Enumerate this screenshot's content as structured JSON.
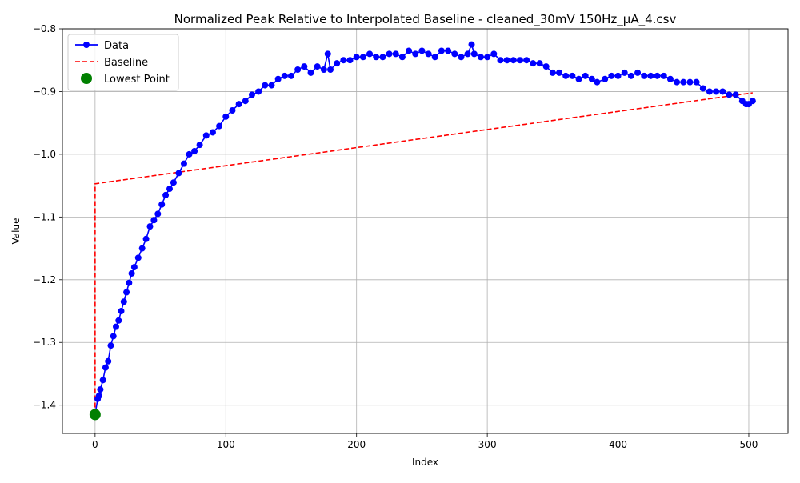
{
  "chart_data": {
    "type": "scatter",
    "title": "Normalized Peak Relative to Interpolated Baseline - cleaned_30mV 150Hz_µA_4.csv",
    "xlabel": "Index",
    "ylabel": "Value",
    "xlim": [
      -25,
      530
    ],
    "ylim": [
      -1.445,
      -0.8
    ],
    "x_ticks": [
      0,
      100,
      200,
      300,
      400,
      500
    ],
    "x_tick_labels": [
      "0",
      "100",
      "200",
      "300",
      "400",
      "500"
    ],
    "y_ticks": [
      -1.4,
      -1.3,
      -1.2,
      -1.1,
      -1.0,
      -0.9,
      -0.8
    ],
    "y_tick_labels": [
      "−1.4",
      "−1.3",
      "−1.2",
      "−1.1",
      "−1.0",
      "−0.9",
      "−0.8"
    ],
    "grid": true,
    "legend_position": "top-left",
    "legend": [
      "Data",
      "Baseline",
      "Lowest Point"
    ],
    "colors": {
      "data": "#0000ff",
      "baseline": "#ff0000",
      "lowest": "#008000",
      "grid": "#b0b0b0"
    },
    "series": [
      {
        "name": "Data",
        "style": "line-with-markers",
        "x": [
          0,
          2,
          3,
          4,
          6,
          8,
          10,
          12,
          14,
          16,
          18,
          20,
          22,
          24,
          26,
          28,
          30,
          33,
          36,
          39,
          42,
          45,
          48,
          51,
          54,
          57,
          60,
          64,
          68,
          72,
          76,
          80,
          85,
          90,
          95,
          100,
          105,
          110,
          115,
          120,
          125,
          130,
          135,
          140,
          145,
          150,
          155,
          160,
          165,
          170,
          175,
          178,
          180,
          185,
          190,
          195,
          200,
          205,
          210,
          215,
          220,
          225,
          230,
          235,
          240,
          245,
          250,
          255,
          260,
          265,
          270,
          275,
          280,
          285,
          288,
          290,
          295,
          300,
          305,
          310,
          315,
          320,
          325,
          330,
          335,
          340,
          345,
          350,
          355,
          360,
          365,
          370,
          375,
          380,
          384,
          390,
          395,
          400,
          405,
          410,
          415,
          420,
          425,
          430,
          435,
          440,
          445,
          450,
          455,
          460,
          465,
          470,
          475,
          480,
          485,
          490,
          495,
          498,
          500,
          503
        ],
        "y": [
          -1.415,
          -1.39,
          -1.385,
          -1.375,
          -1.36,
          -1.34,
          -1.33,
          -1.305,
          -1.29,
          -1.275,
          -1.265,
          -1.25,
          -1.235,
          -1.22,
          -1.205,
          -1.19,
          -1.18,
          -1.165,
          -1.15,
          -1.135,
          -1.115,
          -1.105,
          -1.095,
          -1.08,
          -1.065,
          -1.055,
          -1.045,
          -1.03,
          -1.015,
          -1.0,
          -0.995,
          -0.985,
          -0.97,
          -0.965,
          -0.955,
          -0.94,
          -0.93,
          -0.92,
          -0.915,
          -0.905,
          -0.9,
          -0.89,
          -0.89,
          -0.88,
          -0.875,
          -0.875,
          -0.865,
          -0.86,
          -0.87,
          -0.86,
          -0.865,
          -0.84,
          -0.865,
          -0.855,
          -0.85,
          -0.85,
          -0.845,
          -0.845,
          -0.84,
          -0.845,
          -0.845,
          -0.84,
          -0.84,
          -0.845,
          -0.835,
          -0.84,
          -0.835,
          -0.84,
          -0.845,
          -0.835,
          -0.835,
          -0.84,
          -0.845,
          -0.84,
          -0.825,
          -0.84,
          -0.845,
          -0.845,
          -0.84,
          -0.85,
          -0.85,
          -0.85,
          -0.85,
          -0.85,
          -0.855,
          -0.855,
          -0.86,
          -0.87,
          -0.87,
          -0.875,
          -0.875,
          -0.88,
          -0.875,
          -0.88,
          -0.885,
          -0.88,
          -0.875,
          -0.875,
          -0.87,
          -0.875,
          -0.87,
          -0.875,
          -0.875,
          -0.875,
          -0.875,
          -0.88,
          -0.885,
          -0.885,
          -0.885,
          -0.885,
          -0.895,
          -0.9,
          -0.9,
          -0.9,
          -0.905,
          -0.905,
          -0.915,
          -0.92,
          -0.92,
          -0.915
        ]
      },
      {
        "name": "Baseline",
        "style": "dashed-line",
        "x": [
          0,
          0,
          503
        ],
        "y": [
          -1.415,
          -1.047,
          -0.902
        ]
      },
      {
        "name": "Lowest Point",
        "style": "big-marker",
        "x": [
          0
        ],
        "y": [
          -1.415
        ]
      }
    ]
  }
}
